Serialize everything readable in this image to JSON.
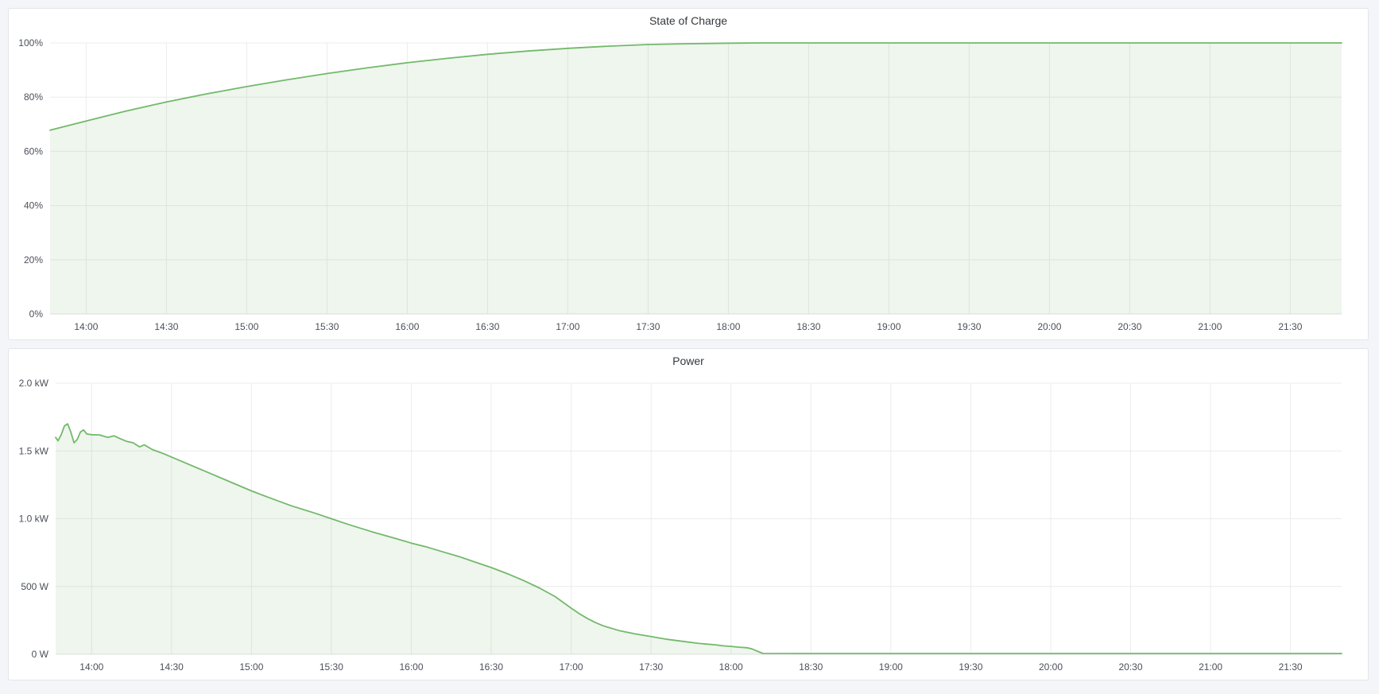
{
  "page": {
    "background": "#f4f5f9"
  },
  "colors": {
    "series_line": "#73b96b",
    "series_fill": "rgba(115,185,107,0.12)",
    "grid": "#ececec",
    "grid_strong": "#e2e2e2",
    "axis_text": "#4b5058",
    "panel_bg": "#ffffff",
    "panel_border": "#e2e5e9"
  },
  "panels": [
    {
      "title": "State of Charge"
    },
    {
      "title": "Power"
    }
  ],
  "chart_data": [
    {
      "type": "area",
      "title": "State of Charge",
      "xlabel": "",
      "ylabel": "",
      "legend_position": "none",
      "grid": true,
      "xlim": [
        13.775,
        21.82
      ],
      "ylim": [
        0,
        100
      ],
      "xticks": [
        {
          "v": 14.0,
          "label": "14:00"
        },
        {
          "v": 14.5,
          "label": "14:30"
        },
        {
          "v": 15.0,
          "label": "15:00"
        },
        {
          "v": 15.5,
          "label": "15:30"
        },
        {
          "v": 16.0,
          "label": "16:00"
        },
        {
          "v": 16.5,
          "label": "16:30"
        },
        {
          "v": 17.0,
          "label": "17:00"
        },
        {
          "v": 17.5,
          "label": "17:30"
        },
        {
          "v": 18.0,
          "label": "18:00"
        },
        {
          "v": 18.5,
          "label": "18:30"
        },
        {
          "v": 19.0,
          "label": "19:00"
        },
        {
          "v": 19.5,
          "label": "19:30"
        },
        {
          "v": 20.0,
          "label": "20:00"
        },
        {
          "v": 20.5,
          "label": "20:30"
        },
        {
          "v": 21.0,
          "label": "21:00"
        },
        {
          "v": 21.5,
          "label": "21:30"
        }
      ],
      "yticks": [
        {
          "v": 0,
          "label": "0%"
        },
        {
          "v": 20,
          "label": "20%"
        },
        {
          "v": 40,
          "label": "40%"
        },
        {
          "v": 60,
          "label": "60%"
        },
        {
          "v": 80,
          "label": "80%"
        },
        {
          "v": 100,
          "label": "100%"
        }
      ],
      "points": [
        [
          13.775,
          67.8
        ],
        [
          14.0,
          71.2
        ],
        [
          14.25,
          74.9
        ],
        [
          14.5,
          78.2
        ],
        [
          14.75,
          81.2
        ],
        [
          15.0,
          83.9
        ],
        [
          15.25,
          86.4
        ],
        [
          15.5,
          88.7
        ],
        [
          15.75,
          90.8
        ],
        [
          16.0,
          92.7
        ],
        [
          16.25,
          94.3
        ],
        [
          16.5,
          95.8
        ],
        [
          16.75,
          97.0
        ],
        [
          17.0,
          98.0
        ],
        [
          17.25,
          98.8
        ],
        [
          17.5,
          99.4
        ],
        [
          17.75,
          99.7
        ],
        [
          18.0,
          99.9
        ],
        [
          18.2,
          100
        ],
        [
          18.5,
          100
        ],
        [
          19.0,
          100
        ],
        [
          19.5,
          100
        ],
        [
          20.0,
          100
        ],
        [
          20.5,
          100
        ],
        [
          21.0,
          100
        ],
        [
          21.5,
          100
        ],
        [
          21.82,
          100
        ]
      ]
    },
    {
      "type": "area",
      "title": "Power",
      "xlabel": "",
      "ylabel": "",
      "legend_position": "none",
      "grid": true,
      "xlim": [
        13.775,
        21.82
      ],
      "ylim": [
        0,
        2000
      ],
      "xticks": [
        {
          "v": 14.0,
          "label": "14:00"
        },
        {
          "v": 14.5,
          "label": "14:30"
        },
        {
          "v": 15.0,
          "label": "15:00"
        },
        {
          "v": 15.5,
          "label": "15:30"
        },
        {
          "v": 16.0,
          "label": "16:00"
        },
        {
          "v": 16.5,
          "label": "16:30"
        },
        {
          "v": 17.0,
          "label": "17:00"
        },
        {
          "v": 17.5,
          "label": "17:30"
        },
        {
          "v": 18.0,
          "label": "18:00"
        },
        {
          "v": 18.5,
          "label": "18:30"
        },
        {
          "v": 19.0,
          "label": "19:00"
        },
        {
          "v": 19.5,
          "label": "19:30"
        },
        {
          "v": 20.0,
          "label": "20:00"
        },
        {
          "v": 20.5,
          "label": "20:30"
        },
        {
          "v": 21.0,
          "label": "21:00"
        },
        {
          "v": 21.5,
          "label": "21:30"
        }
      ],
      "yticks": [
        {
          "v": 0,
          "label": "0 W"
        },
        {
          "v": 500,
          "label": "500 W"
        },
        {
          "v": 1000,
          "label": "1.0 kW"
        },
        {
          "v": 1500,
          "label": "1.5 kW"
        },
        {
          "v": 2000,
          "label": "2.0 kW"
        }
      ],
      "points": [
        [
          13.775,
          1600
        ],
        [
          13.79,
          1575
        ],
        [
          13.81,
          1620
        ],
        [
          13.83,
          1685
        ],
        [
          13.85,
          1700
        ],
        [
          13.87,
          1640
        ],
        [
          13.89,
          1560
        ],
        [
          13.91,
          1585
        ],
        [
          13.93,
          1640
        ],
        [
          13.95,
          1655
        ],
        [
          13.97,
          1625
        ],
        [
          14.0,
          1620
        ],
        [
          14.05,
          1618
        ],
        [
          14.1,
          1600
        ],
        [
          14.14,
          1612
        ],
        [
          14.18,
          1590
        ],
        [
          14.22,
          1570
        ],
        [
          14.26,
          1560
        ],
        [
          14.3,
          1530
        ],
        [
          14.33,
          1545
        ],
        [
          14.38,
          1510
        ],
        [
          14.45,
          1480
        ],
        [
          14.5,
          1455
        ],
        [
          14.6,
          1405
        ],
        [
          14.75,
          1330
        ],
        [
          14.9,
          1255
        ],
        [
          15.0,
          1205
        ],
        [
          15.1,
          1160
        ],
        [
          15.25,
          1095
        ],
        [
          15.4,
          1040
        ],
        [
          15.5,
          1000
        ],
        [
          15.6,
          960
        ],
        [
          15.75,
          905
        ],
        [
          15.9,
          855
        ],
        [
          16.0,
          820
        ],
        [
          16.1,
          790
        ],
        [
          16.2,
          755
        ],
        [
          16.3,
          720
        ],
        [
          16.4,
          680
        ],
        [
          16.5,
          640
        ],
        [
          16.6,
          595
        ],
        [
          16.7,
          545
        ],
        [
          16.8,
          490
        ],
        [
          16.9,
          425
        ],
        [
          17.0,
          340
        ],
        [
          17.05,
          300
        ],
        [
          17.1,
          265
        ],
        [
          17.15,
          235
        ],
        [
          17.2,
          210
        ],
        [
          17.3,
          175
        ],
        [
          17.4,
          150
        ],
        [
          17.5,
          130
        ],
        [
          17.6,
          110
        ],
        [
          17.7,
          95
        ],
        [
          17.8,
          80
        ],
        [
          17.9,
          70
        ],
        [
          17.95,
          62
        ],
        [
          18.0,
          58
        ],
        [
          18.05,
          52
        ],
        [
          18.1,
          48
        ],
        [
          18.13,
          40
        ],
        [
          18.17,
          20
        ],
        [
          18.2,
          6
        ],
        [
          18.5,
          5
        ],
        [
          19.0,
          5
        ],
        [
          19.5,
          5
        ],
        [
          20.0,
          5
        ],
        [
          20.5,
          5
        ],
        [
          21.0,
          5
        ],
        [
          21.5,
          5
        ],
        [
          21.82,
          5
        ]
      ]
    }
  ]
}
